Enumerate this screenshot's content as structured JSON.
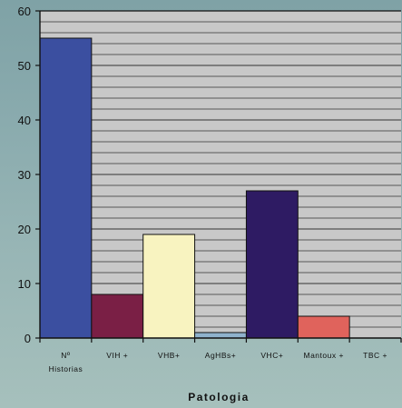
{
  "chart_data": {
    "type": "bar",
    "categories": [
      [
        "Nº",
        "Historias"
      ],
      [
        "VIH +"
      ],
      [
        "VHB+"
      ],
      [
        "AgHBs+"
      ],
      [
        "VHC+"
      ],
      [
        "Mantoux +"
      ],
      [
        "TBC +"
      ]
    ],
    "values": [
      55,
      8,
      19,
      1,
      27,
      4,
      0
    ],
    "bar_colors": [
      "#3b4fa0",
      "#7a1f45",
      "#f8f3c0",
      "#8fb2cc",
      "#2e1b63",
      "#e0635c",
      "#cccccc"
    ],
    "xlabel": "Patologia",
    "ylabel": "",
    "ylim": [
      0,
      60
    ],
    "yticks": [
      0,
      10,
      20,
      30,
      40,
      50,
      60
    ],
    "grid": true,
    "plot_background": "#c8c8c8",
    "gridline_color": "#333333"
  }
}
